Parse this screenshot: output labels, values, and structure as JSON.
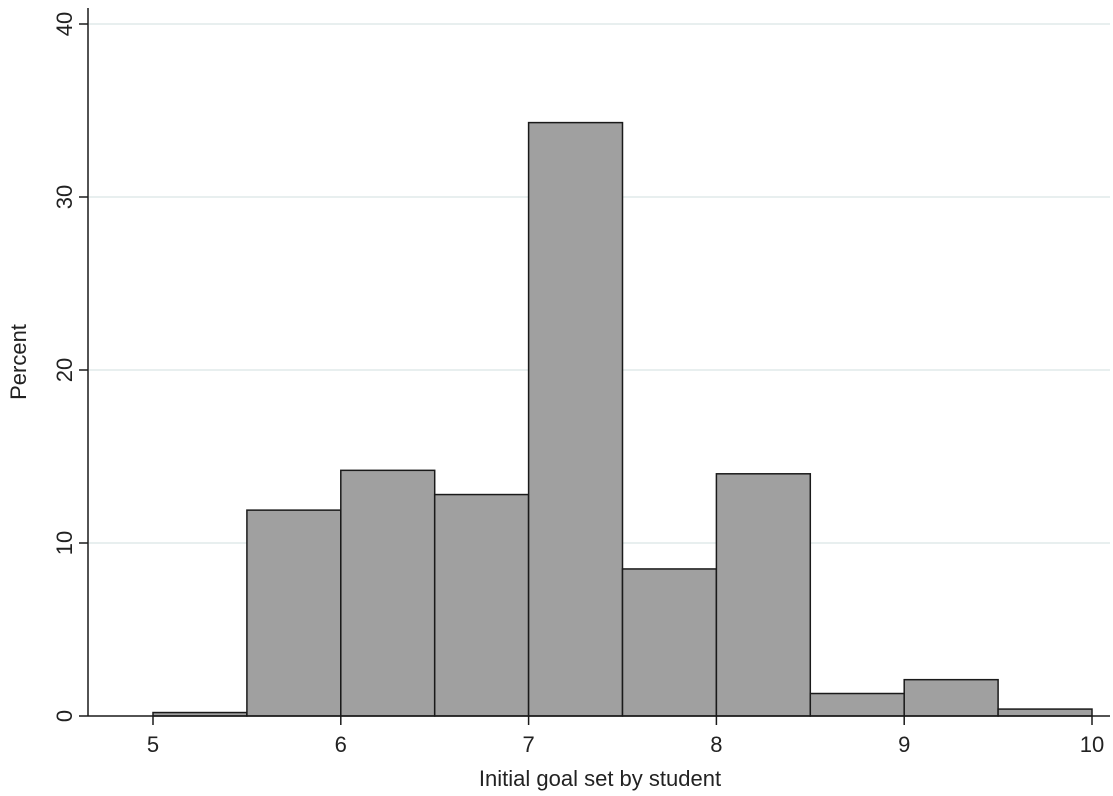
{
  "chart_data": {
    "type": "bar",
    "title": "",
    "xlabel": "Initial goal set by student",
    "ylabel": "Percent",
    "xlim": [
      5,
      10
    ],
    "ylim": [
      0,
      40
    ],
    "x_ticks": [
      "5",
      "6",
      "7",
      "8",
      "9",
      "10"
    ],
    "y_ticks": [
      "0",
      "10",
      "20",
      "30",
      "40"
    ],
    "grid": true,
    "bins": [
      {
        "x_start": 5.0,
        "x_end": 5.5,
        "value": 0.2
      },
      {
        "x_start": 5.5,
        "x_end": 6.0,
        "value": 11.9
      },
      {
        "x_start": 6.0,
        "x_end": 6.5,
        "value": 14.2
      },
      {
        "x_start": 6.5,
        "x_end": 7.0,
        "value": 12.8
      },
      {
        "x_start": 7.0,
        "x_end": 7.5,
        "value": 34.3
      },
      {
        "x_start": 7.5,
        "x_end": 8.0,
        "value": 8.5
      },
      {
        "x_start": 8.0,
        "x_end": 8.5,
        "value": 14.0
      },
      {
        "x_start": 8.5,
        "x_end": 9.0,
        "value": 1.3
      },
      {
        "x_start": 9.0,
        "x_end": 9.5,
        "value": 2.1
      },
      {
        "x_start": 9.5,
        "x_end": 10.0,
        "value": 0.4
      }
    ],
    "colors": {
      "bar_fill": "#a0a0a0",
      "bar_stroke": "#1a1a1a",
      "grid": "#e8efef",
      "axis": "#1a1a1a"
    }
  }
}
